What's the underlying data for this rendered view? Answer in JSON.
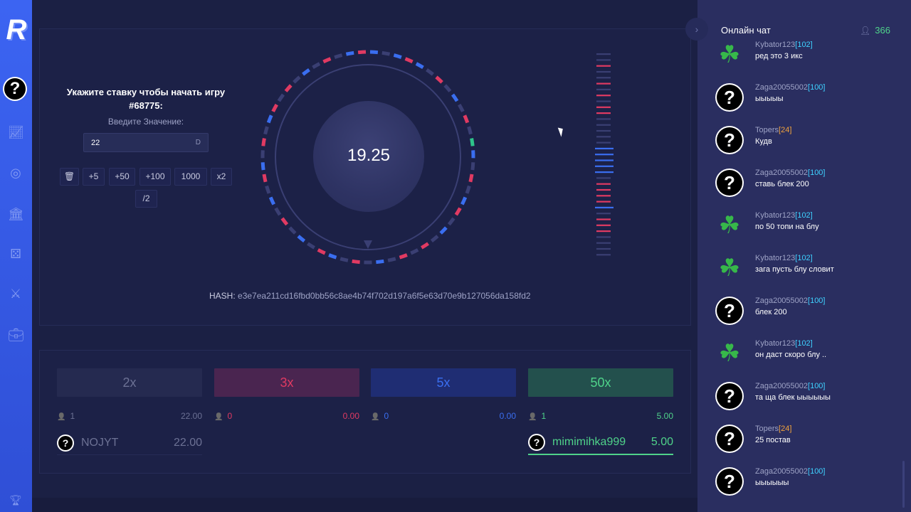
{
  "sidebar": {
    "logo": "R",
    "icons": [
      "chart-icon",
      "target-icon",
      "bank-icon",
      "dice-icon",
      "swords-icon",
      "briefcase-icon",
      "trophy-icon"
    ]
  },
  "bet": {
    "title": "Укажите ставку чтобы начать игру #68775:",
    "subtitle": "Введите Значение:",
    "value": "22",
    "currency": "D",
    "quick_buttons": [
      "+5",
      "+50",
      "+100",
      "1000",
      "x2",
      "/2"
    ]
  },
  "wheel": {
    "value": "19.25",
    "hash_label": "HASH:",
    "hash": "e3e7ea211cd16fbd0bb56c8ae4b74f702d197a6f5e63d70e9b127056da158fd2"
  },
  "history": [
    "gray",
    "gray",
    "red",
    "gray",
    "gray",
    "red",
    "gray",
    "red",
    "gray",
    "red",
    "red",
    "gray",
    "gray",
    "gray",
    "gray",
    "gray",
    "blue",
    "blue",
    "blue",
    "blue",
    "blue",
    "gray",
    "red",
    "red",
    "red",
    "red",
    "blue",
    "gray",
    "red",
    "red",
    "red",
    "gray",
    "gray",
    "gray",
    "gray"
  ],
  "multipliers": [
    {
      "label": "2x",
      "count": "1",
      "sum": "22.00",
      "color": "#6c7194",
      "bg": "#252a50",
      "player": {
        "name": "NOJYT",
        "amount": "22.00"
      }
    },
    {
      "label": "3x",
      "count": "0",
      "sum": "0.00",
      "color": "#e03a62",
      "bg": "#4a2550",
      "player": null
    },
    {
      "label": "5x",
      "count": "0",
      "sum": "0.00",
      "color": "#3a6ef0",
      "bg": "#1f2d73",
      "player": null
    },
    {
      "label": "50x",
      "count": "1",
      "sum": "5.00",
      "color": "#4fd38a",
      "bg": "#23504d",
      "player": {
        "name": "mimimihka999",
        "amount": "5.00"
      }
    }
  ],
  "chat": {
    "title": "Онлайн чат",
    "online": "366",
    "messages": [
      {
        "user": "Kybator123",
        "level": "[102]",
        "level_color": "#3ed1ff",
        "avatar": "clover",
        "text": "ред это 3 икс"
      },
      {
        "user": "Zaga20055002",
        "level": "[100]",
        "level_color": "#3ed1ff",
        "avatar": "q",
        "text": "ыыыыы"
      },
      {
        "user": "Topers",
        "level": "[24]",
        "level_color": "#f2a33c",
        "avatar": "q",
        "text": "Кудв"
      },
      {
        "user": "Zaga20055002",
        "level": "[100]",
        "level_color": "#3ed1ff",
        "avatar": "q",
        "text": "ставь блек 200"
      },
      {
        "user": "Kybator123",
        "level": "[102]",
        "level_color": "#3ed1ff",
        "avatar": "clover",
        "text": "по 50 топи на блу"
      },
      {
        "user": "Kybator123",
        "level": "[102]",
        "level_color": "#3ed1ff",
        "avatar": "clover",
        "text": "зага пусть блу словит"
      },
      {
        "user": "Zaga20055002",
        "level": "[100]",
        "level_color": "#3ed1ff",
        "avatar": "q",
        "text": "блек 200"
      },
      {
        "user": "Kybator123",
        "level": "[102]",
        "level_color": "#3ed1ff",
        "avatar": "clover",
        "text": "он даст скоро блу .."
      },
      {
        "user": "Zaga20055002",
        "level": "[100]",
        "level_color": "#3ed1ff",
        "avatar": "q",
        "text": "та ща блек ыыыыыы"
      },
      {
        "user": "Topers",
        "level": "[24]",
        "level_color": "#f2a33c",
        "avatar": "q",
        "text": "25 постав"
      },
      {
        "user": "Zaga20055002",
        "level": "[100]",
        "level_color": "#3ed1ff",
        "avatar": "q",
        "text": "ыыыыыы"
      }
    ]
  }
}
